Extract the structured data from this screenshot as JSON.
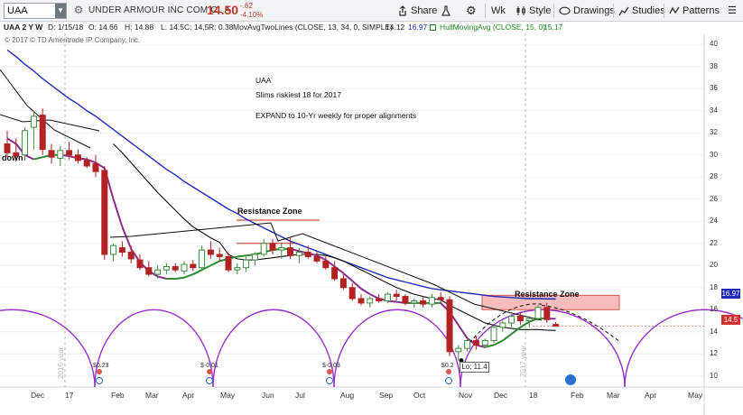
{
  "toolbar": {
    "symbol": "UAA",
    "company": "UNDER ARMOUR INC COM CL A",
    "price": "14.50",
    "change": "-.62",
    "change_pct": "-4.10%",
    "share": "Share",
    "period": "Wk",
    "style": "Style",
    "drawings": "Drawings",
    "studies": "Studies",
    "patterns": "Patterns"
  },
  "legend": {
    "header": "UAA 2 Y W",
    "date": "D: 1/15/18",
    "open": "O: 14.66",
    "high": "H: 14.88",
    "low": "L: 14.5",
    "close": "C: 14.5",
    "range": "R: 0.38",
    "mov_avg": "MovAvgTwoLines (CLOSE, 13, 34, 0, SIMPLE)",
    "mov_avg_v1": "14.12",
    "mov_avg_v2": "16.97",
    "hma": "HullMovingAvg (CLOSE, 15, 0)",
    "hma_v": "15.17"
  },
  "copyright": "© 2017 © TD Ameritrade IP Company, Inc.",
  "annotations": {
    "title": "UAA",
    "line2": "Slims riskiest 18 for 2017",
    "line3": "EXPAND to 10-Yr weekly for proper alignments",
    "resistance1": "Resistance Zone",
    "resistance2": "Resistance Zone",
    "down": "down",
    "low": "Lo: 11.4",
    "year2016": "2016 year",
    "year2017": "2017 year"
  },
  "dividends": [
    "$0.23",
    "$-0.01",
    "$-0.03",
    "$0.2"
  ],
  "price_tags": {
    "ma34": "16.97",
    "last": "14.5"
  },
  "colors": {
    "up": "#3c8a3c",
    "down": "#b22222",
    "ma13": "#111111",
    "ma34": "#1f2bb8",
    "hma_up": "#2e8b2e",
    "hma_down": "#8a2c8a",
    "cycle": "#9b2fc9",
    "res_zone": "#f4a6a6"
  },
  "chart_data": {
    "type": "candlestick",
    "title": "UAA 2 Y W",
    "ylim": [
      9,
      41
    ],
    "y_ticks": [
      10,
      12,
      14,
      16,
      18,
      20,
      22,
      24,
      26,
      28,
      30,
      32,
      34,
      36,
      38,
      40
    ],
    "months": [
      "Dec",
      "17",
      "Feb",
      "Mar",
      "Apr",
      "May",
      "Jun",
      "Jul",
      "Aug",
      "Sep",
      "Oct",
      "Nov",
      "Dec",
      "18",
      "Feb",
      "Mar",
      "Apr",
      "May"
    ],
    "candles": [
      {
        "o": 31.0,
        "h": 32.2,
        "l": 29.8,
        "c": 30.2
      },
      {
        "o": 30.2,
        "h": 31.5,
        "l": 29.4,
        "c": 29.9
      },
      {
        "o": 30.0,
        "h": 32.5,
        "l": 29.5,
        "c": 32.2
      },
      {
        "o": 32.5,
        "h": 34.0,
        "l": 30.5,
        "c": 33.5
      },
      {
        "o": 33.6,
        "h": 34.2,
        "l": 30.0,
        "c": 30.5
      },
      {
        "o": 30.4,
        "h": 31.0,
        "l": 29.2,
        "c": 29.8
      },
      {
        "o": 29.7,
        "h": 30.8,
        "l": 29.0,
        "c": 30.4
      },
      {
        "o": 30.4,
        "h": 31.2,
        "l": 29.6,
        "c": 30.0
      },
      {
        "o": 30.0,
        "h": 30.5,
        "l": 29.2,
        "c": 29.5
      },
      {
        "o": 29.5,
        "h": 29.8,
        "l": 28.8,
        "c": 29.0
      },
      {
        "o": 29.2,
        "h": 30.0,
        "l": 28.0,
        "c": 28.5
      },
      {
        "o": 28.6,
        "h": 29.0,
        "l": 20.5,
        "c": 21.0
      },
      {
        "o": 21.0,
        "h": 22.0,
        "l": 20.4,
        "c": 21.8
      },
      {
        "o": 21.6,
        "h": 22.2,
        "l": 20.8,
        "c": 21.2
      },
      {
        "o": 21.2,
        "h": 21.8,
        "l": 20.2,
        "c": 20.6
      },
      {
        "o": 20.5,
        "h": 21.0,
        "l": 19.6,
        "c": 19.8
      },
      {
        "o": 19.8,
        "h": 20.4,
        "l": 19.0,
        "c": 19.2
      },
      {
        "o": 19.2,
        "h": 20.0,
        "l": 18.8,
        "c": 19.6
      },
      {
        "o": 19.6,
        "h": 20.2,
        "l": 19.2,
        "c": 19.9
      },
      {
        "o": 19.9,
        "h": 20.2,
        "l": 19.4,
        "c": 19.6
      },
      {
        "o": 19.5,
        "h": 20.4,
        "l": 19.2,
        "c": 20.1
      },
      {
        "o": 20.1,
        "h": 20.5,
        "l": 19.5,
        "c": 19.8
      },
      {
        "o": 19.8,
        "h": 21.8,
        "l": 19.5,
        "c": 21.4
      },
      {
        "o": 21.4,
        "h": 22.2,
        "l": 20.6,
        "c": 21.0
      },
      {
        "o": 21.0,
        "h": 21.6,
        "l": 20.4,
        "c": 20.8
      },
      {
        "o": 20.8,
        "h": 21.2,
        "l": 19.4,
        "c": 19.6
      },
      {
        "o": 19.6,
        "h": 20.2,
        "l": 19.2,
        "c": 19.8
      },
      {
        "o": 19.8,
        "h": 20.8,
        "l": 19.4,
        "c": 20.5
      },
      {
        "o": 20.5,
        "h": 21.2,
        "l": 20.0,
        "c": 21.0
      },
      {
        "o": 21.0,
        "h": 22.4,
        "l": 20.8,
        "c": 22.0
      },
      {
        "o": 22.0,
        "h": 22.4,
        "l": 21.0,
        "c": 21.4
      },
      {
        "o": 21.4,
        "h": 22.0,
        "l": 20.6,
        "c": 21.6
      },
      {
        "o": 21.6,
        "h": 22.6,
        "l": 20.6,
        "c": 20.9
      },
      {
        "o": 20.9,
        "h": 21.6,
        "l": 20.2,
        "c": 21.2
      },
      {
        "o": 21.2,
        "h": 21.8,
        "l": 20.6,
        "c": 20.8
      },
      {
        "o": 20.8,
        "h": 21.2,
        "l": 20.2,
        "c": 20.4
      },
      {
        "o": 20.4,
        "h": 20.8,
        "l": 19.6,
        "c": 19.8
      },
      {
        "o": 19.8,
        "h": 20.4,
        "l": 18.6,
        "c": 18.8
      },
      {
        "o": 18.8,
        "h": 19.2,
        "l": 17.8,
        "c": 18.0
      },
      {
        "o": 18.0,
        "h": 18.4,
        "l": 16.8,
        "c": 17.0
      },
      {
        "o": 17.0,
        "h": 17.4,
        "l": 16.4,
        "c": 16.6
      },
      {
        "o": 16.6,
        "h": 17.2,
        "l": 16.2,
        "c": 17.0
      },
      {
        "o": 17.0,
        "h": 17.4,
        "l": 16.6,
        "c": 16.8
      },
      {
        "o": 16.8,
        "h": 17.6,
        "l": 16.6,
        "c": 17.4
      },
      {
        "o": 17.4,
        "h": 17.8,
        "l": 16.8,
        "c": 17.2
      },
      {
        "o": 17.2,
        "h": 17.4,
        "l": 16.4,
        "c": 16.6
      },
      {
        "o": 16.6,
        "h": 17.0,
        "l": 16.2,
        "c": 16.8
      },
      {
        "o": 16.8,
        "h": 17.2,
        "l": 16.2,
        "c": 16.5
      },
      {
        "o": 16.5,
        "h": 17.4,
        "l": 16.2,
        "c": 17.1
      },
      {
        "o": 17.1,
        "h": 17.6,
        "l": 16.6,
        "c": 16.9
      },
      {
        "o": 16.9,
        "h": 17.2,
        "l": 11.8,
        "c": 12.2
      },
      {
        "o": 12.2,
        "h": 12.8,
        "l": 11.4,
        "c": 12.5
      },
      {
        "o": 12.5,
        "h": 13.4,
        "l": 12.2,
        "c": 13.2
      },
      {
        "o": 13.2,
        "h": 13.6,
        "l": 12.4,
        "c": 12.8
      },
      {
        "o": 12.8,
        "h": 13.4,
        "l": 12.6,
        "c": 13.2
      },
      {
        "o": 13.2,
        "h": 14.6,
        "l": 13.0,
        "c": 14.4
      },
      {
        "o": 14.4,
        "h": 15.0,
        "l": 14.0,
        "c": 14.8
      },
      {
        "o": 14.8,
        "h": 15.6,
        "l": 14.4,
        "c": 15.4
      },
      {
        "o": 15.4,
        "h": 15.8,
        "l": 14.6,
        "c": 15.0
      },
      {
        "o": 15.0,
        "h": 15.4,
        "l": 14.4,
        "c": 15.2
      },
      {
        "o": 15.2,
        "h": 16.4,
        "l": 15.0,
        "c": 16.2
      },
      {
        "o": 16.2,
        "h": 16.6,
        "l": 14.8,
        "c": 15.1
      },
      {
        "o": 14.66,
        "h": 14.88,
        "l": 14.5,
        "c": 14.5
      }
    ],
    "ma13": [
      null,
      null,
      null,
      null,
      null,
      null,
      null,
      null,
      null,
      null,
      null,
      null,
      31.0,
      30.2,
      29.3,
      28.4,
      27.5,
      26.6,
      25.8,
      25.0,
      24.2,
      23.5,
      23.0,
      22.5,
      22.1,
      21.0,
      20.6,
      20.5,
      20.5,
      20.6,
      20.7,
      20.8,
      20.9,
      21.0,
      21.0,
      21.0,
      20.9,
      20.7,
      20.4,
      20.0,
      19.6,
      19.2,
      18.8,
      18.4,
      18.0,
      17.7,
      17.4,
      17.2,
      17.0,
      16.9,
      16.4,
      16.0,
      15.6,
      15.2,
      14.8,
      14.6,
      14.4,
      14.3,
      14.2,
      14.2,
      14.2,
      14.15,
      14.12
    ],
    "ma34": [
      39.5,
      38.9,
      38.2,
      37.6,
      36.9,
      36.3,
      35.7,
      35.1,
      34.6,
      34.0,
      33.5,
      32.9,
      32.3,
      31.7,
      31.1,
      30.5,
      29.9,
      29.3,
      28.7,
      28.2,
      27.6,
      27.1,
      26.6,
      26.1,
      25.6,
      25.1,
      24.7,
      24.2,
      23.8,
      23.4,
      23.0,
      22.6,
      22.2,
      21.9,
      21.6,
      21.3,
      21.0,
      20.7,
      20.4,
      20.1,
      19.8,
      19.5,
      19.2,
      18.9,
      18.7,
      18.5,
      18.3,
      18.1,
      17.9,
      17.8,
      17.7,
      17.6,
      17.5,
      17.4,
      17.3,
      17.2,
      17.15,
      17.1,
      17.05,
      17.0,
      17.0,
      16.98,
      16.97
    ],
    "hma": [
      31.5,
      31.0,
      30.0,
      29.6,
      29.8,
      30.0,
      30.0,
      29.9,
      29.7,
      29.6,
      29.3,
      28.8,
      26.0,
      23.5,
      21.5,
      20.3,
      19.5,
      19.0,
      18.8,
      18.8,
      18.9,
      19.2,
      19.6,
      20.0,
      20.4,
      20.6,
      20.8,
      20.9,
      21.0,
      21.2,
      21.4,
      21.5,
      21.5,
      21.3,
      21.1,
      20.9,
      20.5,
      19.9,
      19.3,
      18.6,
      17.9,
      17.4,
      17.0,
      16.8,
      16.7,
      16.6,
      16.6,
      16.6,
      16.6,
      16.6,
      15.8,
      14.6,
      13.4,
      12.8,
      12.6,
      12.8,
      13.2,
      13.8,
      14.4,
      14.9,
      15.2,
      15.2,
      15.17
    ],
    "resistance_zones": [
      {
        "from": 22.0,
        "to": 24.1
      },
      {
        "from": 16.0,
        "to": 17.3
      }
    ]
  }
}
